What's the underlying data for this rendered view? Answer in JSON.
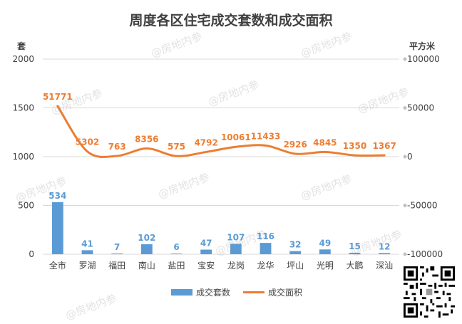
{
  "title": "周度各区住宅成交套数和成交面积",
  "left_unit": "套",
  "right_unit": "平方米",
  "watermark": "@房地内参",
  "legend": {
    "bar_label": "成交套数",
    "line_label": "成交面积"
  },
  "colors": {
    "bar": "#5b9bd5",
    "line": "#ed7d31",
    "axis_text": "#404040",
    "grid": "#d9d9d9"
  },
  "chart_data": {
    "type": "bar",
    "categories": [
      "全市",
      "罗湖",
      "福田",
      "南山",
      "盐田",
      "宝安",
      "龙岗",
      "龙华",
      "坪山",
      "光明",
      "大鹏",
      "深汕"
    ],
    "series": [
      {
        "name": "成交套数",
        "type": "bar",
        "axis": "left",
        "values": [
          534,
          41,
          7,
          102,
          6,
          47,
          107,
          116,
          32,
          49,
          15,
          12
        ]
      },
      {
        "name": "成交面积",
        "type": "line",
        "axis": "right",
        "values": [
          51771,
          5302,
          763,
          8356,
          575,
          4792,
          10061,
          11433,
          2926,
          4845,
          1350,
          1367
        ]
      }
    ],
    "left_axis": {
      "ticks": [
        0,
        500,
        1000,
        1500,
        2000
      ],
      "ylim": [
        0,
        2000
      ]
    },
    "right_axis": {
      "ticks": [
        -100000,
        -50000,
        0,
        50000,
        100000
      ],
      "ylim": [
        -100000,
        100000
      ]
    },
    "grid": true,
    "legend_position": "bottom"
  }
}
